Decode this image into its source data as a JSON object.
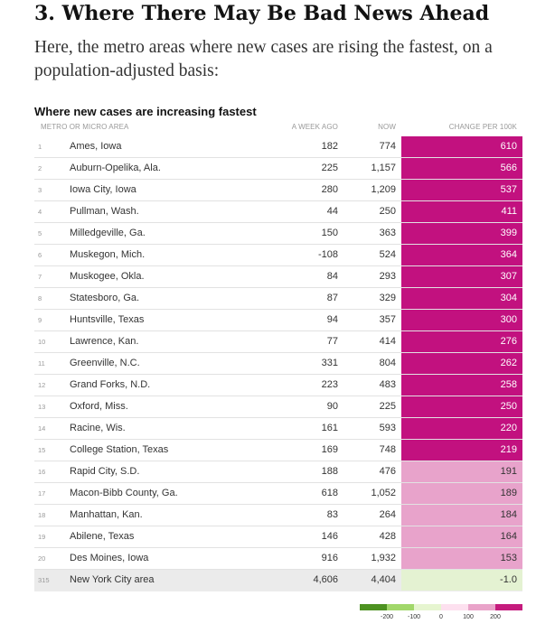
{
  "headline": "3. Where There May Be Bad News Ahead",
  "intro": "Here, the metro areas where new cases are rising the fastest, on a population-adjusted basis:",
  "table": {
    "title": "Where new cases are increasing fastest",
    "columns": {
      "metro": "METRO OR MICRO AREA",
      "week_ago": "A WEEK AGO",
      "now": "NOW",
      "change": "CHANGE PER 100K"
    },
    "rows": [
      {
        "rank": "1",
        "name": "Ames, Iowa",
        "week_ago": "182",
        "now": "774",
        "change": "610",
        "color": "#c2117f",
        "text_color": "#ffffff"
      },
      {
        "rank": "2",
        "name": "Auburn-Opelika, Ala.",
        "week_ago": "225",
        "now": "1,157",
        "change": "566",
        "color": "#c2117f",
        "text_color": "#ffffff"
      },
      {
        "rank": "3",
        "name": "Iowa City, Iowa",
        "week_ago": "280",
        "now": "1,209",
        "change": "537",
        "color": "#c2117f",
        "text_color": "#ffffff"
      },
      {
        "rank": "4",
        "name": "Pullman, Wash.",
        "week_ago": "44",
        "now": "250",
        "change": "411",
        "color": "#c2117f",
        "text_color": "#ffffff"
      },
      {
        "rank": "5",
        "name": "Milledgeville, Ga.",
        "week_ago": "150",
        "now": "363",
        "change": "399",
        "color": "#c2117f",
        "text_color": "#ffffff"
      },
      {
        "rank": "6",
        "name": "Muskegon, Mich.",
        "week_ago": "-108",
        "now": "524",
        "change": "364",
        "color": "#c2117f",
        "text_color": "#ffffff"
      },
      {
        "rank": "7",
        "name": "Muskogee, Okla.",
        "week_ago": "84",
        "now": "293",
        "change": "307",
        "color": "#c2117f",
        "text_color": "#ffffff"
      },
      {
        "rank": "8",
        "name": "Statesboro, Ga.",
        "week_ago": "87",
        "now": "329",
        "change": "304",
        "color": "#c2117f",
        "text_color": "#ffffff"
      },
      {
        "rank": "9",
        "name": "Huntsville, Texas",
        "week_ago": "94",
        "now": "357",
        "change": "300",
        "color": "#c2117f",
        "text_color": "#ffffff"
      },
      {
        "rank": "10",
        "name": "Lawrence, Kan.",
        "week_ago": "77",
        "now": "414",
        "change": "276",
        "color": "#c2117f",
        "text_color": "#ffffff"
      },
      {
        "rank": "11",
        "name": "Greenville, N.C.",
        "week_ago": "331",
        "now": "804",
        "change": "262",
        "color": "#c2117f",
        "text_color": "#ffffff"
      },
      {
        "rank": "12",
        "name": "Grand Forks, N.D.",
        "week_ago": "223",
        "now": "483",
        "change": "258",
        "color": "#c2117f",
        "text_color": "#ffffff"
      },
      {
        "rank": "13",
        "name": "Oxford, Miss.",
        "week_ago": "90",
        "now": "225",
        "change": "250",
        "color": "#c2117f",
        "text_color": "#ffffff"
      },
      {
        "rank": "14",
        "name": "Racine, Wis.",
        "week_ago": "161",
        "now": "593",
        "change": "220",
        "color": "#c2117f",
        "text_color": "#ffffff"
      },
      {
        "rank": "15",
        "name": "College Station, Texas",
        "week_ago": "169",
        "now": "748",
        "change": "219",
        "color": "#c2117f",
        "text_color": "#ffffff"
      },
      {
        "rank": "16",
        "name": "Rapid City, S.D.",
        "week_ago": "188",
        "now": "476",
        "change": "191",
        "color": "#e8a3cb",
        "text_color": "#333333"
      },
      {
        "rank": "17",
        "name": "Macon-Bibb County, Ga.",
        "week_ago": "618",
        "now": "1,052",
        "change": "189",
        "color": "#e8a3cb",
        "text_color": "#333333"
      },
      {
        "rank": "18",
        "name": "Manhattan, Kan.",
        "week_ago": "83",
        "now": "264",
        "change": "184",
        "color": "#e8a3cb",
        "text_color": "#333333"
      },
      {
        "rank": "19",
        "name": "Abilene, Texas",
        "week_ago": "146",
        "now": "428",
        "change": "164",
        "color": "#e8a3cb",
        "text_color": "#333333"
      },
      {
        "rank": "20",
        "name": "Des Moines, Iowa",
        "week_ago": "916",
        "now": "1,932",
        "change": "153",
        "color": "#e8a3cb",
        "text_color": "#333333"
      },
      {
        "rank": "315",
        "name": "New York City area",
        "week_ago": "4,606",
        "now": "4,404",
        "change": "-1.0",
        "color": "#e4f2d2",
        "text_color": "#333333",
        "highlight": true
      }
    ]
  },
  "legend": {
    "colors": [
      "#4d9221",
      "#a1d76a",
      "#e6f5d0",
      "#fde0ef",
      "#e9a3c9",
      "#c51b7d"
    ],
    "labels": [
      "-200",
      "-100",
      "0",
      "100",
      "200"
    ]
  }
}
